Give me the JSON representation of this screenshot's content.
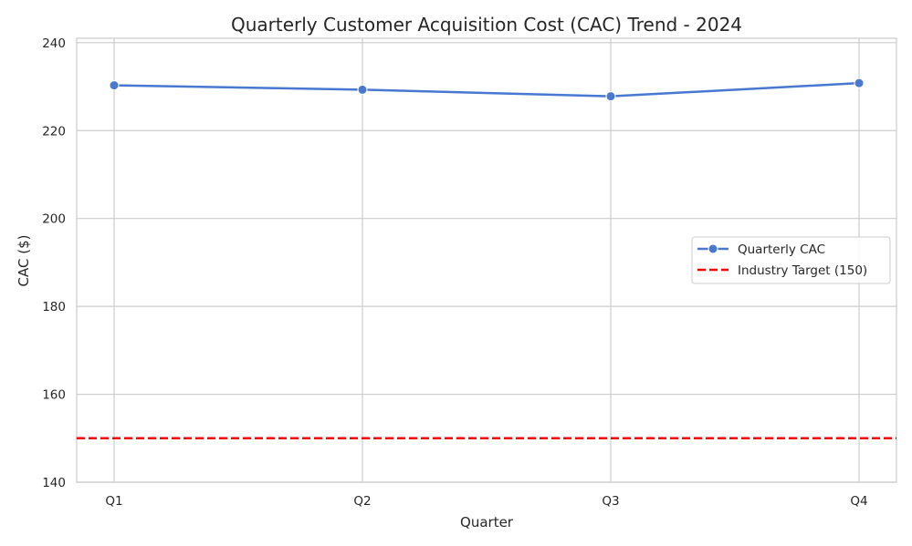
{
  "chart_data": {
    "type": "line",
    "title": "Quarterly Customer Acquisition Cost (CAC) Trend - 2024",
    "xlabel": "Quarter",
    "ylabel": "CAC ($)",
    "categories": [
      "Q1",
      "Q2",
      "Q3",
      "Q4"
    ],
    "ylim": [
      140,
      241
    ],
    "yticks": [
      140,
      160,
      180,
      200,
      220,
      240
    ],
    "grid": true,
    "legend_position": "center-right",
    "series": [
      {
        "name": "Quarterly CAC",
        "values": [
          230.3,
          229.3,
          227.8,
          230.8
        ],
        "color": "#4878cf",
        "marker": "circle"
      }
    ],
    "reference_lines": [
      {
        "name": "Industry Target (150)",
        "y": 150,
        "color": "#ff0000",
        "style": "dashed"
      }
    ]
  }
}
